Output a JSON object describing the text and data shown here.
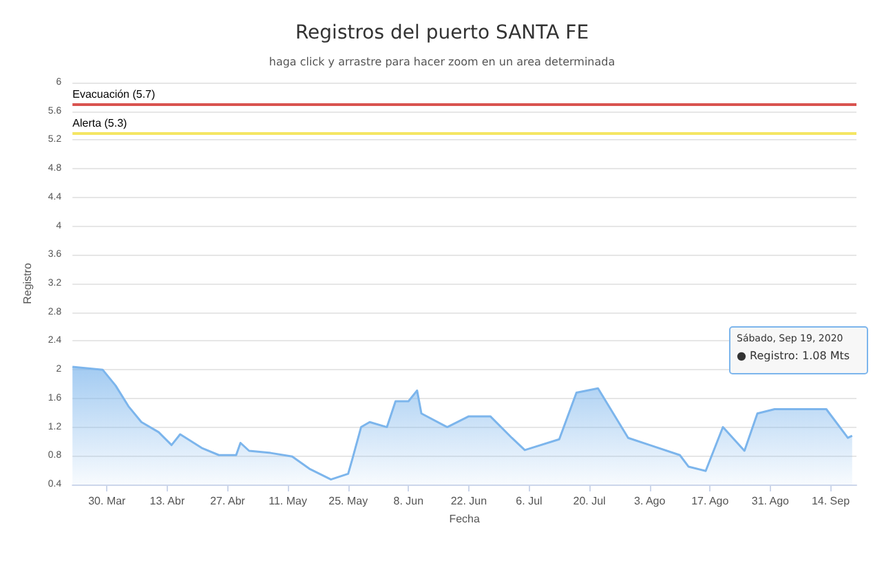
{
  "chart_data": {
    "type": "area",
    "title": "Registros del puerto SANTA FE",
    "subtitle": "haga click y arrastre para hacer zoom en un area determinada",
    "xlabel": "Fecha",
    "ylabel": "Registro",
    "x": [
      "2020-03-22",
      "2020-03-29",
      "2020-04-01",
      "2020-04-04",
      "2020-04-07",
      "2020-04-11",
      "2020-04-14",
      "2020-04-16",
      "2020-04-21",
      "2020-04-25",
      "2020-04-29",
      "2020-04-30",
      "2020-05-02",
      "2020-05-07",
      "2020-05-12",
      "2020-05-16",
      "2020-05-21",
      "2020-05-25",
      "2020-05-26",
      "2020-05-28",
      "2020-05-30",
      "2020-06-03",
      "2020-06-05",
      "2020-06-08",
      "2020-06-10",
      "2020-06-11",
      "2020-06-17",
      "2020-06-22",
      "2020-06-27",
      "2020-07-02",
      "2020-07-05",
      "2020-07-13",
      "2020-07-17",
      "2020-07-22",
      "2020-07-29",
      "2020-08-03",
      "2020-08-10",
      "2020-08-12",
      "2020-08-16",
      "2020-08-20",
      "2020-08-25",
      "2020-08-28",
      "2020-09-01",
      "2020-09-13",
      "2020-09-18",
      "2020-09-19"
    ],
    "series": [
      {
        "color": "#7cb5ec",
        "values": [
          2.04,
          2.0,
          1.78,
          1.49,
          1.27,
          1.13,
          0.95,
          1.1,
          0.91,
          0.81,
          0.81,
          0.98,
          0.87,
          0.84,
          0.79,
          0.62,
          0.47,
          0.55,
          0.76,
          1.2,
          1.27,
          1.2,
          1.56,
          1.56,
          1.71,
          1.39,
          1.2,
          1.35,
          1.35,
          1.05,
          0.88,
          1.03,
          1.68,
          1.74,
          1.05,
          0.95,
          0.81,
          0.65,
          0.59,
          1.2,
          0.87,
          1.39,
          1.45,
          1.45,
          1.05,
          1.08
        ]
      }
    ],
    "xlim": [
      "2020-03-22",
      "2020-09-20"
    ],
    "xticks": [
      {
        "value": "2020-03-30",
        "label": "30. Mar"
      },
      {
        "value": "2020-04-13",
        "label": "13. Abr"
      },
      {
        "value": "2020-04-27",
        "label": "27. Abr"
      },
      {
        "value": "2020-05-11",
        "label": "11. May"
      },
      {
        "value": "2020-05-25",
        "label": "25. May"
      },
      {
        "value": "2020-06-08",
        "label": "8. Jun"
      },
      {
        "value": "2020-06-22",
        "label": "22. Jun"
      },
      {
        "value": "2020-07-06",
        "label": "6. Jul"
      },
      {
        "value": "2020-07-20",
        "label": "20. Jul"
      },
      {
        "value": "2020-08-03",
        "label": "3. Ago"
      },
      {
        "value": "2020-08-17",
        "label": "17. Ago"
      },
      {
        "value": "2020-08-31",
        "label": "31. Ago"
      },
      {
        "value": "2020-09-14",
        "label": "14. Sep"
      }
    ],
    "ylim": [
      0.4,
      6
    ],
    "yticks": [
      0.4,
      0.8,
      1.2,
      1.6,
      2,
      2.4,
      2.8,
      3.2,
      3.6,
      4,
      4.4,
      4.8,
      5.2,
      5.6,
      6
    ],
    "ref_lines": [
      {
        "axis": "y",
        "value": 5.7,
        "label": "Evacuación (5.7)",
        "color": "#d9534f"
      },
      {
        "axis": "y",
        "value": 5.3,
        "label": "Alerta (5.3)",
        "color": "#f5e663"
      }
    ],
    "annotations": [
      "Sábado, Sep 19, 2020",
      "● Registro: 1.08 Mts"
    ],
    "grid": "y",
    "marker": "none"
  }
}
